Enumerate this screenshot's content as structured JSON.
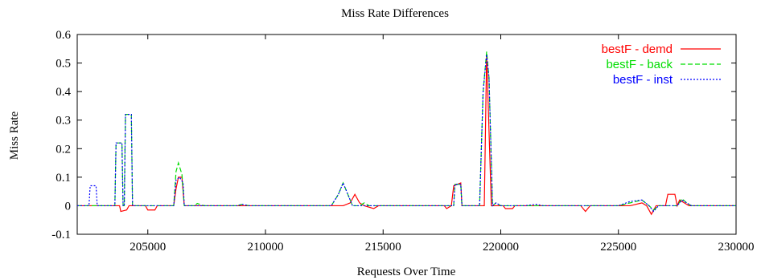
{
  "chart_data": {
    "type": "line",
    "title": "Miss Rate Differences",
    "xlabel": "Requests Over Time",
    "ylabel": "Miss Rate",
    "xlim": [
      202000,
      230000
    ],
    "ylim": [
      -0.1,
      0.6
    ],
    "x_ticks": [
      205000,
      210000,
      215000,
      220000,
      225000,
      230000
    ],
    "x_tick_labels": [
      "205000",
      "210000",
      "215000",
      "220000",
      "225000",
      "230000"
    ],
    "y_ticks": [
      -0.1,
      0,
      0.1,
      0.2,
      0.3,
      0.4,
      0.5,
      0.6
    ],
    "y_tick_labels": [
      "-0.1",
      "0",
      "0.1",
      "0.2",
      "0.3",
      "0.4",
      "0.5",
      "0.6"
    ],
    "grid": false,
    "legend_position": "top-right",
    "series": [
      {
        "name": "bestF - demd",
        "color": "#ff0000",
        "dash": "solid",
        "points": [
          [
            202000,
            0.0
          ],
          [
            203800,
            0.0
          ],
          [
            203850,
            -0.02
          ],
          [
            204100,
            -0.015
          ],
          [
            204200,
            0.0
          ],
          [
            204900,
            0.0
          ],
          [
            205000,
            -0.015
          ],
          [
            205300,
            -0.015
          ],
          [
            205400,
            0.0
          ],
          [
            206100,
            0.0
          ],
          [
            206200,
            0.06
          ],
          [
            206300,
            0.1
          ],
          [
            206450,
            0.1
          ],
          [
            206550,
            0.0
          ],
          [
            213000,
            0.0
          ],
          [
            213300,
            0.0
          ],
          [
            213600,
            0.01
          ],
          [
            213800,
            0.04
          ],
          [
            214000,
            0.01
          ],
          [
            214200,
            0.0
          ],
          [
            214600,
            -0.01
          ],
          [
            214800,
            0.0
          ],
          [
            217600,
            0.0
          ],
          [
            217700,
            -0.01
          ],
          [
            217900,
            0.0
          ],
          [
            218000,
            0.07
          ],
          [
            218300,
            0.08
          ],
          [
            218350,
            0.0
          ],
          [
            219300,
            0.0
          ],
          [
            219400,
            0.53
          ],
          [
            219600,
            0.0
          ],
          [
            219800,
            0.0
          ],
          [
            220100,
            0.0
          ],
          [
            220200,
            -0.01
          ],
          [
            220500,
            -0.01
          ],
          [
            220600,
            0.0
          ],
          [
            223400,
            0.0
          ],
          [
            223600,
            -0.02
          ],
          [
            223800,
            0.0
          ],
          [
            225500,
            0.0
          ],
          [
            226000,
            0.01
          ],
          [
            226200,
            0.0
          ],
          [
            226400,
            -0.03
          ],
          [
            226600,
            0.0
          ],
          [
            227000,
            0.0
          ],
          [
            227100,
            0.04
          ],
          [
            227400,
            0.04
          ],
          [
            227500,
            0.0
          ],
          [
            227600,
            0.02
          ],
          [
            227800,
            0.01
          ],
          [
            228000,
            0.0
          ],
          [
            230000,
            0.0
          ]
        ]
      },
      {
        "name": "bestF - back",
        "color": "#00dd00",
        "dash": "6,3",
        "points": [
          [
            202000,
            0.0
          ],
          [
            203600,
            0.0
          ],
          [
            203650,
            0.22
          ],
          [
            203900,
            0.22
          ],
          [
            203950,
            0.0
          ],
          [
            204000,
            0.0
          ],
          [
            204050,
            0.32
          ],
          [
            204300,
            0.32
          ],
          [
            204350,
            0.0
          ],
          [
            206100,
            0.0
          ],
          [
            206200,
            0.12
          ],
          [
            206300,
            0.15
          ],
          [
            206450,
            0.11
          ],
          [
            206550,
            0.0
          ],
          [
            207000,
            0.0
          ],
          [
            207100,
            0.008
          ],
          [
            207400,
            0.0
          ],
          [
            208800,
            0.0
          ],
          [
            209000,
            0.005
          ],
          [
            209300,
            0.0
          ],
          [
            212800,
            0.0
          ],
          [
            213100,
            0.04
          ],
          [
            213300,
            0.08
          ],
          [
            213500,
            0.04
          ],
          [
            213700,
            0.0
          ],
          [
            214000,
            0.0
          ],
          [
            214200,
            0.01
          ],
          [
            214400,
            0.0
          ],
          [
            218000,
            0.0
          ],
          [
            218050,
            0.075
          ],
          [
            218300,
            0.075
          ],
          [
            218350,
            0.0
          ],
          [
            219100,
            0.0
          ],
          [
            219250,
            0.4
          ],
          [
            219400,
            0.54
          ],
          [
            219500,
            0.45
          ],
          [
            219650,
            0.0
          ],
          [
            219800,
            0.01
          ],
          [
            220000,
            0.0
          ],
          [
            225000,
            0.0
          ],
          [
            225500,
            0.01
          ],
          [
            226000,
            0.02
          ],
          [
            226300,
            0.0
          ],
          [
            226500,
            -0.015
          ],
          [
            226700,
            0.0
          ],
          [
            227500,
            0.0
          ],
          [
            227700,
            0.025
          ],
          [
            227900,
            0.01
          ],
          [
            228100,
            0.0
          ],
          [
            230000,
            0.0
          ]
        ]
      },
      {
        "name": "bestF - inst",
        "color": "#0000ff",
        "dash": "2,2",
        "points": [
          [
            202000,
            0.0
          ],
          [
            202500,
            0.0
          ],
          [
            202550,
            0.07
          ],
          [
            202800,
            0.07
          ],
          [
            202850,
            0.0
          ],
          [
            203600,
            0.0
          ],
          [
            203650,
            0.22
          ],
          [
            203900,
            0.22
          ],
          [
            203950,
            0.0
          ],
          [
            204000,
            0.0
          ],
          [
            204050,
            0.32
          ],
          [
            204300,
            0.32
          ],
          [
            204350,
            0.0
          ],
          [
            206100,
            0.0
          ],
          [
            206200,
            0.09
          ],
          [
            206350,
            0.1
          ],
          [
            206500,
            0.08
          ],
          [
            206550,
            0.0
          ],
          [
            208800,
            0.0
          ],
          [
            209000,
            0.005
          ],
          [
            209300,
            0.0
          ],
          [
            212800,
            0.0
          ],
          [
            213100,
            0.04
          ],
          [
            213300,
            0.08
          ],
          [
            213500,
            0.04
          ],
          [
            213700,
            0.0
          ],
          [
            218000,
            0.0
          ],
          [
            218050,
            0.075
          ],
          [
            218300,
            0.075
          ],
          [
            218350,
            0.0
          ],
          [
            219100,
            0.0
          ],
          [
            219250,
            0.4
          ],
          [
            219400,
            0.53
          ],
          [
            219500,
            0.45
          ],
          [
            219650,
            0.0
          ],
          [
            219800,
            0.01
          ],
          [
            220000,
            0.0
          ],
          [
            221000,
            0.0
          ],
          [
            221500,
            0.005
          ],
          [
            221800,
            0.0
          ],
          [
            225000,
            0.0
          ],
          [
            225500,
            0.015
          ],
          [
            226000,
            0.02
          ],
          [
            226300,
            0.0
          ],
          [
            226500,
            -0.02
          ],
          [
            226700,
            0.0
          ],
          [
            227500,
            0.0
          ],
          [
            227700,
            0.02
          ],
          [
            227900,
            0.01
          ],
          [
            228100,
            0.0
          ],
          [
            230000,
            0.0
          ]
        ]
      }
    ]
  }
}
